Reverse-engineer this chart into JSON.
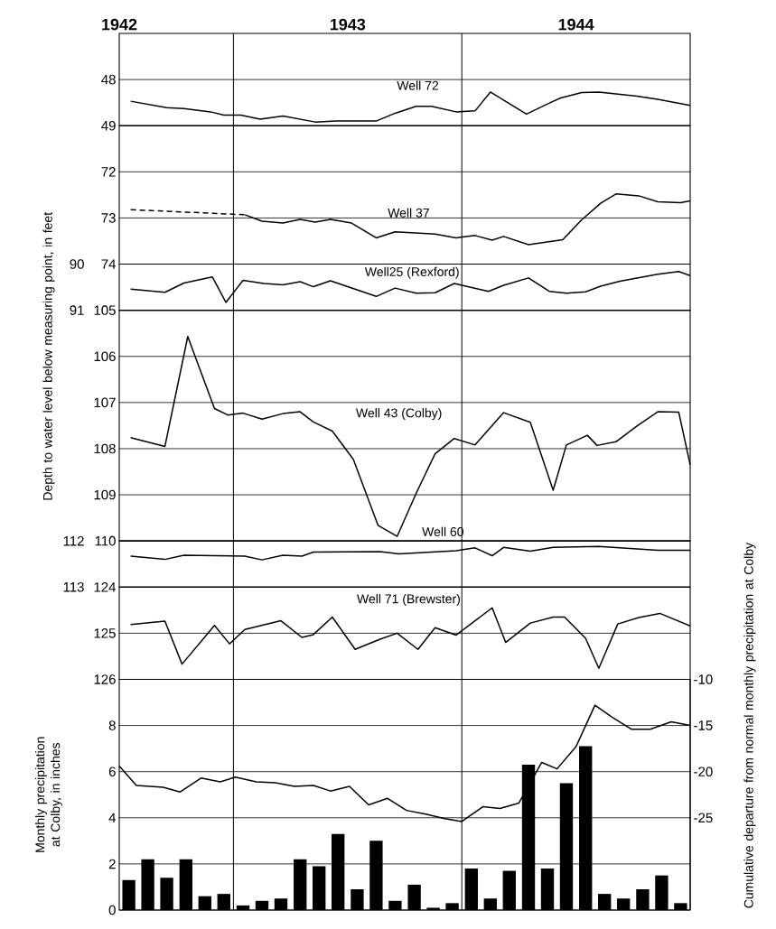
{
  "chart_data": [
    {
      "type": "line",
      "xlim": [
        1942.5,
        1945
      ],
      "xticks": [
        {
          "value": 1942.5,
          "label": "1942"
        },
        {
          "value": 1943.5,
          "label": "1943"
        },
        {
          "value": 1944.5,
          "label": "1944"
        }
      ],
      "ylim": [
        49,
        47
      ],
      "yticks": [
        48,
        49
      ],
      "grid": "y",
      "ref_lines": [
        {
          "axis": "x",
          "value": 1943
        },
        {
          "axis": "x",
          "value": 1944
        }
      ],
      "series": [
        {
          "name": "Well 72",
          "color": "#000000",
          "x": [
            1942.55,
            1942.708,
            1942.783,
            1942.9,
            1942.958,
            1943.033,
            1943.117,
            1943.217,
            1943.358,
            1943.45,
            1943.625,
            1943.708,
            1943.8,
            1943.867,
            1943.975,
            1944.058,
            1944.125,
            1944.283,
            1944.392,
            1944.433,
            1944.525,
            1944.6,
            1944.767,
            1944.858,
            1945
          ],
          "values": [
            48.47,
            48.61,
            48.63,
            48.7,
            48.77,
            48.77,
            48.86,
            48.79,
            48.92,
            48.9,
            48.9,
            48.73,
            48.58,
            48.58,
            48.7,
            48.68,
            48.27,
            48.75,
            48.49,
            48.4,
            48.28,
            48.27,
            48.36,
            48.43,
            48.56
          ]
        }
      ]
    },
    {
      "type": "line",
      "xlim": [
        1942.5,
        1945
      ],
      "ylim": [
        74,
        71
      ],
      "yticks": [
        72,
        73,
        74
      ],
      "grid": "y",
      "tick_labels": "y",
      "ref_lines": [
        {
          "axis": "x",
          "value": 1943
        },
        {
          "axis": "x",
          "value": 1944
        }
      ],
      "series": [
        {
          "color": "#000000",
          "line_style": "dashed",
          "x": [
            1942.55,
            1943.05
          ],
          "values": [
            72.82,
            72.93
          ]
        },
        {
          "name": "Well 37",
          "color": "#000000",
          "x": [
            1943.05,
            1943.125,
            1943.217,
            1943.292,
            1943.358,
            1943.425,
            1943.517,
            1943.625,
            1943.708,
            1943.883,
            1943.975,
            1944.058,
            1944.133,
            1944.183,
            1944.292,
            1944.442,
            1944.525,
            1944.608,
            1944.675,
            1944.775,
            1944.858,
            1944.958,
            1945
          ],
          "values": [
            72.93,
            73.07,
            73.11,
            73.03,
            73.09,
            73.03,
            73.11,
            73.43,
            73.3,
            73.35,
            73.43,
            73.38,
            73.48,
            73.4,
            73.58,
            73.47,
            73.04,
            72.68,
            72.48,
            72.52,
            72.65,
            72.67,
            72.63
          ]
        }
      ]
    },
    {
      "type": "line",
      "xlim": [
        1942.5,
        1945
      ],
      "ylim": [
        91,
        90
      ],
      "yticks": [
        90,
        91
      ],
      "tick_labels": "y",
      "ref_lines": [
        {
          "axis": "x",
          "value": 1943
        },
        {
          "axis": "x",
          "value": 1944
        }
      ],
      "series": [
        {
          "name": "Well25 (Rexford)",
          "color": "#000000",
          "x": [
            1942.55,
            1942.7,
            1942.783,
            1942.908,
            1942.967,
            1943.042,
            1943.133,
            1943.217,
            1943.292,
            1943.35,
            1943.425,
            1943.625,
            1943.708,
            1943.8,
            1943.883,
            1943.967,
            1944.117,
            1944.183,
            1944.292,
            1944.383,
            1944.458,
            1944.542,
            1944.608,
            1944.692,
            1944.858,
            1944.95,
            1945
          ],
          "values": [
            90.54,
            90.61,
            90.41,
            90.28,
            90.83,
            90.35,
            90.42,
            90.45,
            90.38,
            90.49,
            90.36,
            90.7,
            90.52,
            90.63,
            90.62,
            90.42,
            90.59,
            90.46,
            90.3,
            90.59,
            90.63,
            90.6,
            90.48,
            90.37,
            90.22,
            90.16,
            90.25
          ]
        }
      ]
    },
    {
      "type": "line",
      "xlim": [
        1942.5,
        1945
      ],
      "ylim": [
        110,
        105
      ],
      "yticks": [
        105,
        106,
        107,
        108,
        109,
        110
      ],
      "grid": "y",
      "tick_labels": "y",
      "ylabel": "Depth to water level below measuring point, in feet",
      "ref_lines": [
        {
          "axis": "x",
          "value": 1943
        },
        {
          "axis": "x",
          "value": 1944
        }
      ],
      "series": [
        {
          "name": "Well 43 (Colby)",
          "color": "#000000",
          "x": [
            1942.55,
            1942.7,
            1942.8,
            1942.917,
            1942.975,
            1943.042,
            1943.125,
            1943.217,
            1943.292,
            1943.35,
            1943.433,
            1943.525,
            1943.633,
            1943.717,
            1943.8,
            1943.883,
            1943.967,
            1944.058,
            1944.183,
            1944.3,
            1944.4,
            1944.458,
            1944.55,
            1944.592,
            1944.675,
            1944.767,
            1944.858,
            1944.95,
            1945
          ],
          "values": [
            107.76,
            107.95,
            105.57,
            107.13,
            107.27,
            107.23,
            107.36,
            107.24,
            107.2,
            107.42,
            107.62,
            108.23,
            109.66,
            109.9,
            108.97,
            108.11,
            107.78,
            107.92,
            107.22,
            107.43,
            108.9,
            107.92,
            107.71,
            107.93,
            107.85,
            107.51,
            107.2,
            107.21,
            108.35
          ]
        }
      ]
    },
    {
      "type": "line",
      "xlim": [
        1942.5,
        1945
      ],
      "ylim": [
        113,
        112
      ],
      "yticks": [
        112,
        113
      ],
      "tick_labels": "y",
      "ref_lines": [
        {
          "axis": "x",
          "value": 1943
        },
        {
          "axis": "x",
          "value": 1944
        }
      ],
      "series": [
        {
          "name": "Well 60",
          "color": "#000000",
          "x": [
            1942.55,
            1942.7,
            1942.783,
            1943.05,
            1943.125,
            1943.217,
            1943.3,
            1943.35,
            1943.642,
            1943.725,
            1943.975,
            1944.058,
            1944.133,
            1944.183,
            1944.3,
            1944.4,
            1944.6,
            1944.858,
            1945
          ],
          "values": [
            112.33,
            112.4,
            112.31,
            112.33,
            112.41,
            112.31,
            112.33,
            112.24,
            112.23,
            112.28,
            112.21,
            112.15,
            112.32,
            112.14,
            112.22,
            112.14,
            112.12,
            112.2,
            112.2
          ]
        }
      ]
    },
    {
      "type": "line",
      "xlim": [
        1942.5,
        1945
      ],
      "ylim": [
        126,
        124
      ],
      "yticks": [
        124,
        125,
        126
      ],
      "grid": "y",
      "tick_labels": "y",
      "ref_lines": [
        {
          "axis": "x",
          "value": 1943
        },
        {
          "axis": "x",
          "value": 1944
        }
      ],
      "series": [
        {
          "name": "Well 71 (Brewster)",
          "color": "#000000",
          "x": [
            1942.55,
            1942.7,
            1942.775,
            1942.917,
            1942.983,
            1943.05,
            1943.208,
            1943.3,
            1943.35,
            1943.433,
            1943.533,
            1943.642,
            1943.717,
            1943.808,
            1943.883,
            1943.975,
            1944.058,
            1944.133,
            1944.192,
            1944.3,
            1944.4,
            1944.45,
            1944.542,
            1944.6,
            1944.683,
            1944.775,
            1944.867,
            1945
          ],
          "values": [
            124.81,
            124.74,
            125.67,
            124.83,
            125.23,
            124.92,
            124.73,
            125.09,
            125.03,
            124.65,
            125.35,
            125.13,
            125.0,
            125.35,
            124.88,
            125.04,
            124.73,
            124.45,
            125.2,
            124.78,
            124.65,
            124.65,
            125.11,
            125.76,
            124.8,
            124.66,
            124.57,
            124.84
          ]
        }
      ]
    },
    {
      "type": "bar",
      "xlim": [
        1942.5,
        1945
      ],
      "ylim": [
        0,
        10
      ],
      "yticks": [
        0,
        2,
        4,
        6,
        8
      ],
      "y2lim": [
        -35,
        -10
      ],
      "y2ticks": [
        -10,
        -15,
        -20,
        -25
      ],
      "grid": "y",
      "tick_labels": "y",
      "ylabel": "Monthly precipitation at Colby, in inches",
      "y2label": "Cumulative departure from normal monthly precipitation at Colby",
      "ref_lines": [
        {
          "axis": "x",
          "value": 1943
        },
        {
          "axis": "x",
          "value": 1944
        }
      ],
      "series": [
        {
          "type": "bar",
          "color": "#000000",
          "x": [
            1942.542,
            1942.625,
            1942.708,
            1942.792,
            1942.875,
            1942.958,
            1943.042,
            1943.125,
            1943.208,
            1943.292,
            1943.375,
            1943.458,
            1943.542,
            1943.625,
            1943.708,
            1943.792,
            1943.875,
            1943.958,
            1944.042,
            1944.125,
            1944.208,
            1944.292,
            1944.375,
            1944.458,
            1944.542,
            1944.625,
            1944.708,
            1944.792,
            1944.875,
            1944.958
          ],
          "values": [
            1.3,
            2.2,
            1.4,
            2.2,
            0.6,
            0.7,
            0.2,
            0.4,
            0.5,
            2.2,
            1.9,
            3.3,
            0.9,
            3.0,
            0.4,
            1.1,
            0.1,
            0.3,
            1.8,
            0.5,
            1.7,
            6.3,
            1.8,
            5.5,
            7.1,
            0.7,
            0.5,
            0.9,
            1.5,
            0.3
          ]
        },
        {
          "type": "line",
          "axis": "y2",
          "color": "#000000",
          "x": [
            1942.5,
            1942.575,
            1942.692,
            1942.767,
            1942.858,
            1942.942,
            1943.008,
            1943.1,
            1943.183,
            1943.267,
            1943.35,
            1943.425,
            1943.508,
            1943.592,
            1943.675,
            1943.758,
            1943.842,
            1943.925,
            1944.0,
            1944.092,
            1944.167,
            1944.25,
            1944.35,
            1944.417,
            1944.5,
            1944.583,
            1944.658,
            1944.742,
            1944.825,
            1944.917,
            1945
          ],
          "values": [
            -19.4,
            -21.5,
            -21.7,
            -22.2,
            -20.7,
            -21.1,
            -20.6,
            -21.1,
            -21.2,
            -21.6,
            -21.5,
            -22.1,
            -21.6,
            -23.6,
            -22.9,
            -24.2,
            -24.6,
            -25.1,
            -25.4,
            -23.8,
            -24.0,
            -23.4,
            -19.0,
            -19.7,
            -17.3,
            -12.8,
            -14.1,
            -15.4,
            -15.4,
            -14.6,
            -15.0
          ]
        }
      ]
    }
  ]
}
